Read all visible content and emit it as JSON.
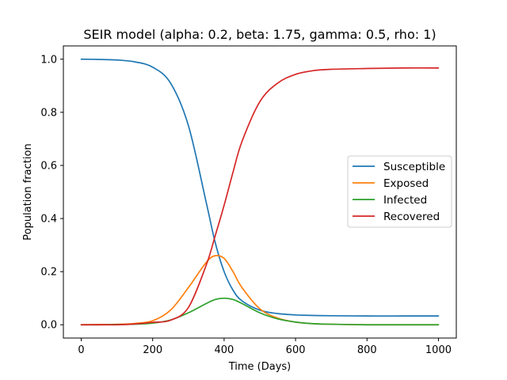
{
  "chart_data": {
    "type": "line",
    "title": "SEIR model (alpha: 0.2, beta: 1.75, gamma: 0.5, rho: 1)",
    "xlabel": "Time (Days)",
    "ylabel": "Population fraction",
    "xlim": [
      -50,
      1050
    ],
    "ylim": [
      -0.05,
      1.05
    ],
    "xticks": [
      0,
      200,
      400,
      600,
      800,
      1000
    ],
    "xtick_labels": [
      "0",
      "200",
      "400",
      "600",
      "800",
      "1000"
    ],
    "yticks": [
      0.0,
      0.2,
      0.4,
      0.6,
      0.8,
      1.0
    ],
    "ytick_labels": [
      "0.0",
      "0.2",
      "0.4",
      "0.6",
      "0.8",
      "1.0"
    ],
    "grid": false,
    "legend_position": "center-right",
    "x": [
      0,
      50,
      100,
      150,
      200,
      250,
      300,
      350,
      375,
      400,
      425,
      450,
      500,
      550,
      600,
      650,
      700,
      800,
      900,
      1000
    ],
    "series": [
      {
        "name": "Susceptible",
        "color": "#1f77b4",
        "values": [
          1.0,
          0.999,
          0.997,
          0.99,
          0.97,
          0.91,
          0.75,
          0.46,
          0.31,
          0.2,
          0.13,
          0.09,
          0.055,
          0.042,
          0.037,
          0.035,
          0.034,
          0.033,
          0.033,
          0.033
        ]
      },
      {
        "name": "Exposed",
        "color": "#ff7f0e",
        "values": [
          0.0,
          0.001,
          0.002,
          0.005,
          0.015,
          0.055,
          0.14,
          0.235,
          0.26,
          0.25,
          0.2,
          0.14,
          0.06,
          0.025,
          0.01,
          0.004,
          0.002,
          0.0,
          0.0,
          0.0
        ]
      },
      {
        "name": "Infected",
        "color": "#2ca02c",
        "values": [
          0.0,
          0.0,
          0.001,
          0.002,
          0.006,
          0.018,
          0.045,
          0.08,
          0.095,
          0.1,
          0.095,
          0.08,
          0.045,
          0.022,
          0.01,
          0.004,
          0.002,
          0.0,
          0.0,
          0.0
        ]
      },
      {
        "name": "Recovered",
        "color": "#d62728",
        "values": [
          0.0,
          0.0,
          0.0,
          0.003,
          0.009,
          0.017,
          0.065,
          0.225,
          0.335,
          0.45,
          0.575,
          0.69,
          0.84,
          0.91,
          0.943,
          0.957,
          0.962,
          0.965,
          0.967,
          0.967
        ]
      }
    ]
  }
}
